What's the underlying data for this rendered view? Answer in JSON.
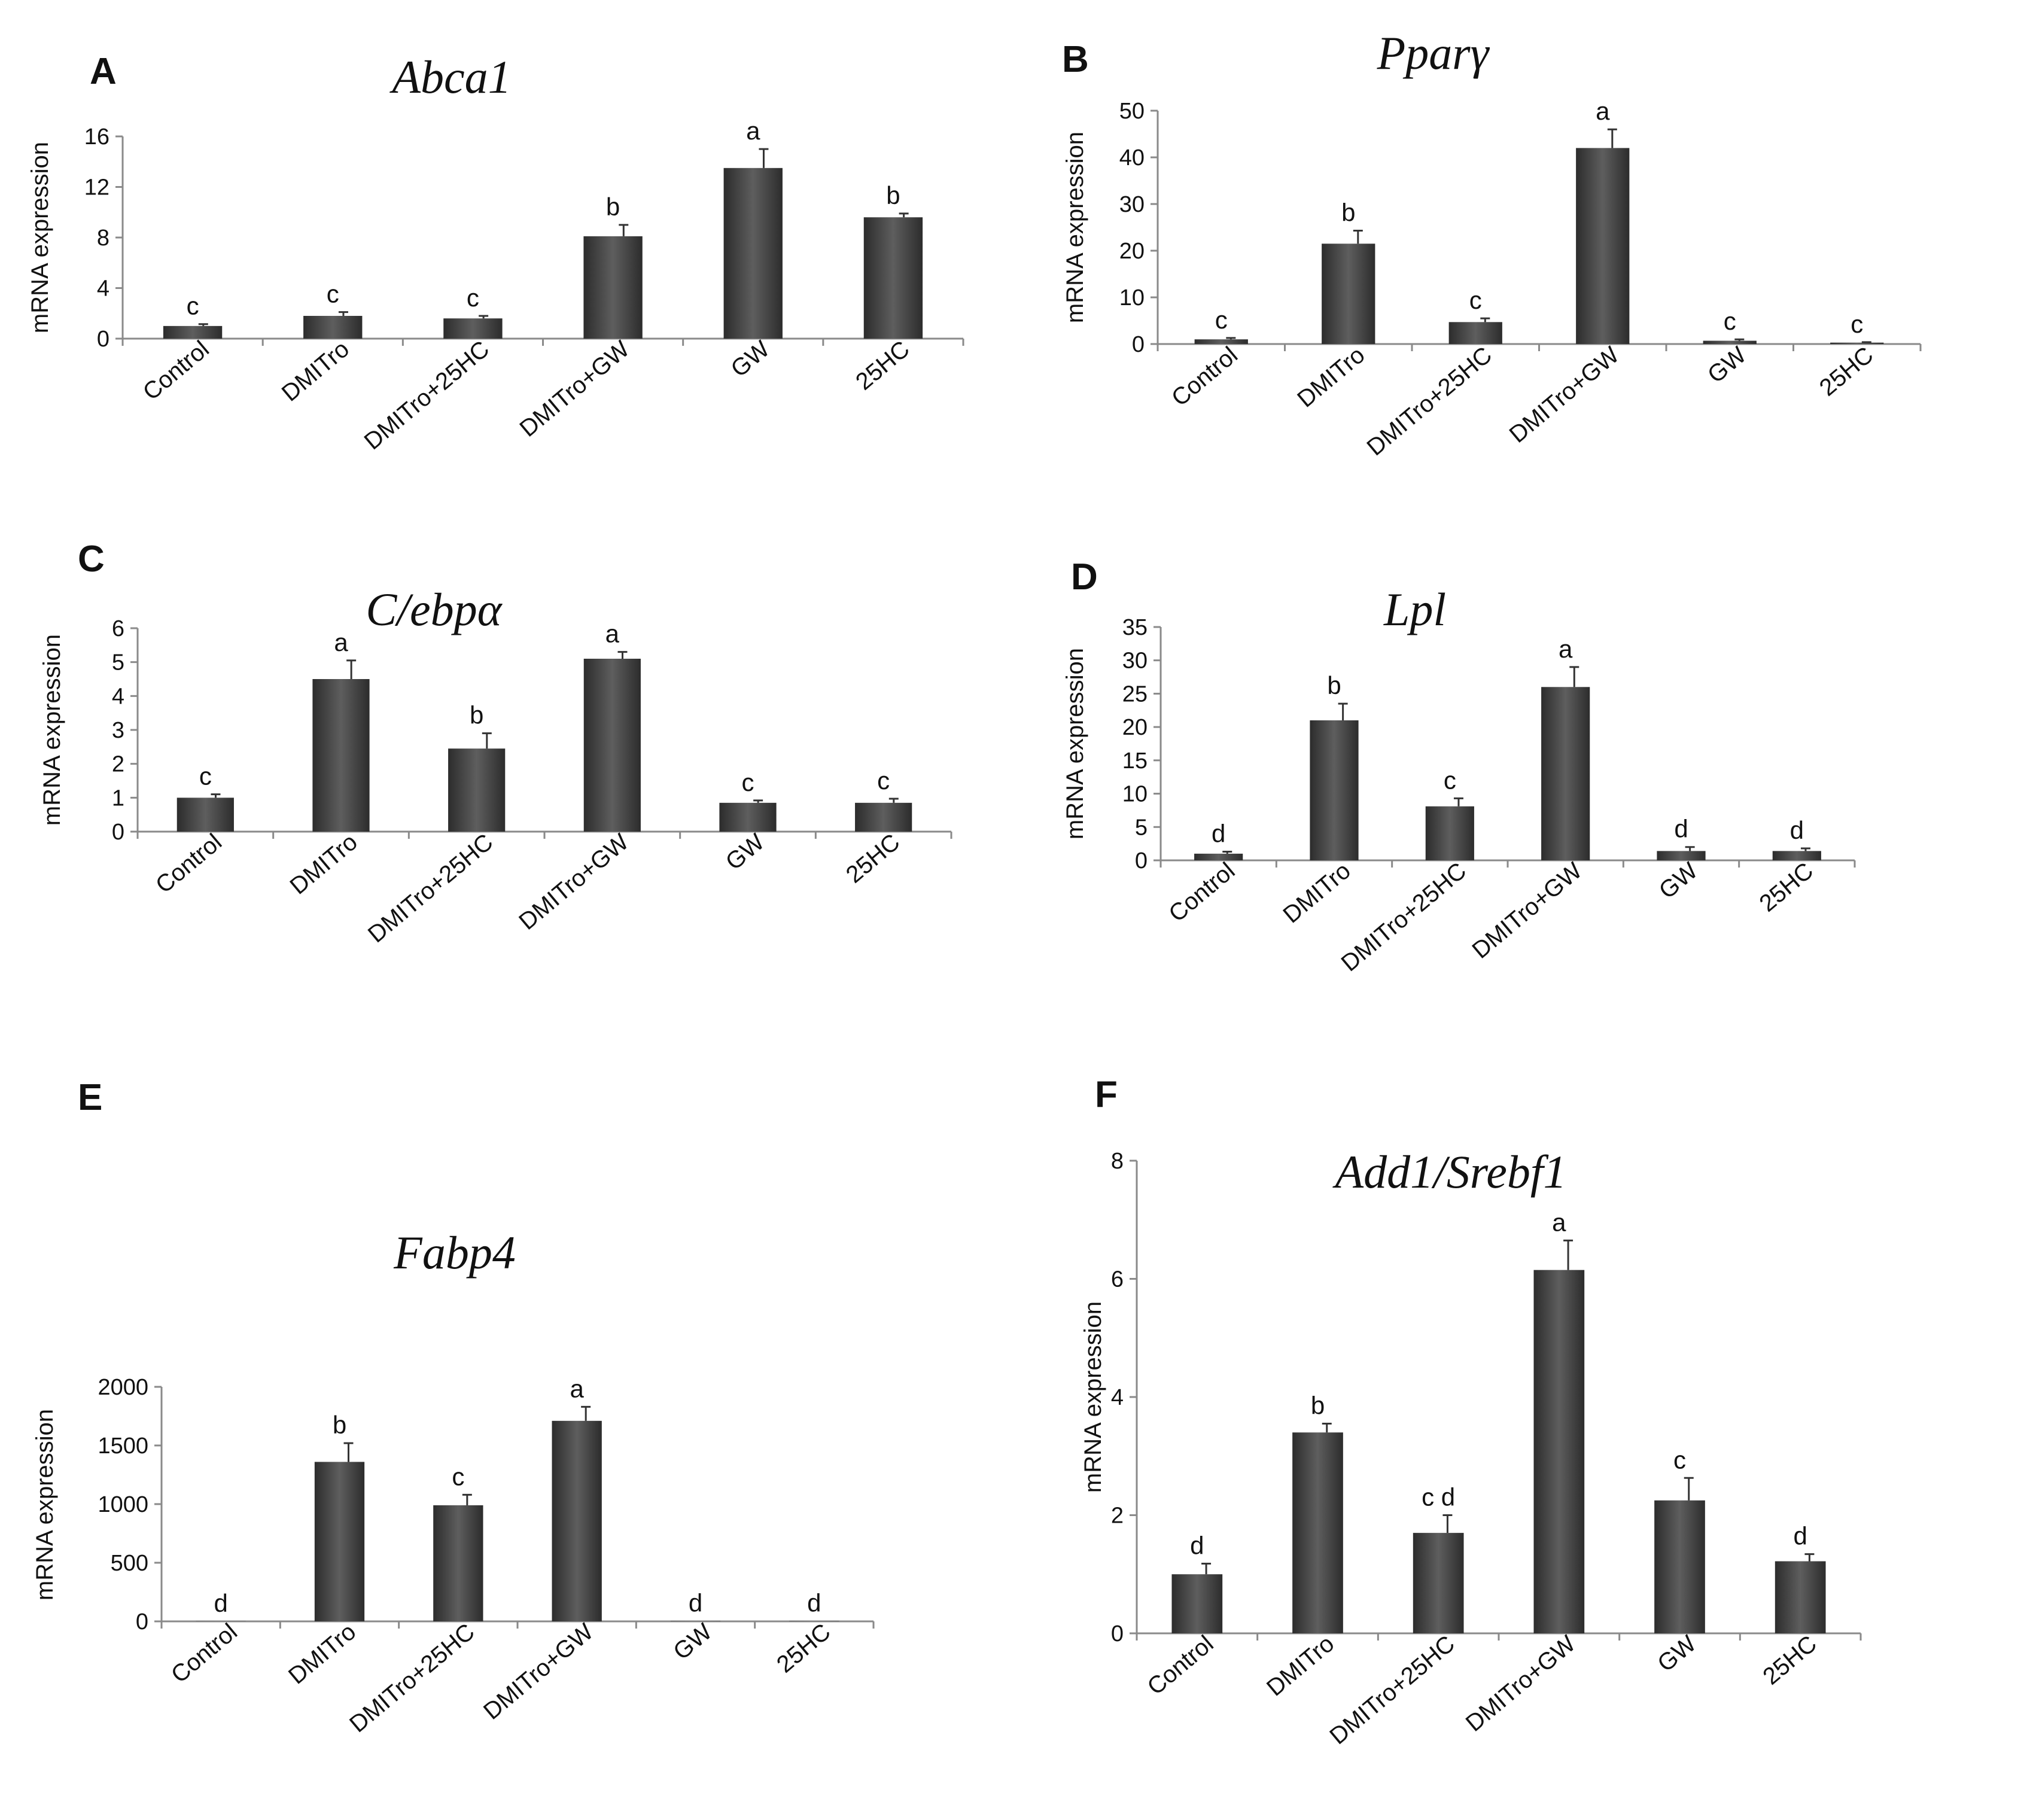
{
  "figure_title": "mRNA expression panels A–F",
  "colors": {
    "bar_dark": "#3a3a3a",
    "bar_light": "#6a6a6a",
    "axis": "#8a8a8a",
    "text": "#111111"
  },
  "chart_data": [
    {
      "panel": "A",
      "type": "bar",
      "title": "Abca1",
      "xlabel": "",
      "ylabel": "mRNA expression",
      "categories": [
        "Control",
        "DMITro",
        "DMITro+25HC",
        "DMITro+GW",
        "GW",
        "25HC"
      ],
      "values": [
        1.0,
        1.8,
        1.6,
        8.1,
        13.5,
        9.6
      ],
      "errors": [
        0.15,
        0.3,
        0.2,
        0.9,
        1.5,
        0.3
      ],
      "significance": [
        "c",
        "c",
        "c",
        "b",
        "a",
        "b"
      ],
      "ylim": [
        0,
        16
      ],
      "yticks": [
        0,
        4,
        8,
        12,
        16
      ]
    },
    {
      "panel": "B",
      "type": "bar",
      "title": "Pparγ",
      "xlabel": "",
      "ylabel": "mRNA expression",
      "categories": [
        "Control",
        "DMITro",
        "DMITro+25HC",
        "DMITro+GW",
        "GW",
        "25HC"
      ],
      "values": [
        1.0,
        21.5,
        4.7,
        42.0,
        0.7,
        0.3
      ],
      "errors": [
        0.3,
        2.8,
        0.8,
        4.0,
        0.3,
        0.1
      ],
      "significance": [
        "c",
        "b",
        "c",
        "a",
        "c",
        "c"
      ],
      "ylim": [
        0,
        50
      ],
      "yticks": [
        0,
        10,
        20,
        30,
        40,
        50
      ]
    },
    {
      "panel": "C",
      "type": "bar",
      "title": "C/ebpα",
      "xlabel": "",
      "ylabel": "mRNA expression",
      "categories": [
        "Control",
        "DMITro",
        "DMITro+25HC",
        "DMITro+GW",
        "GW",
        "25HC"
      ],
      "values": [
        1.0,
        4.5,
        2.45,
        5.1,
        0.85,
        0.85
      ],
      "errors": [
        0.1,
        0.55,
        0.45,
        0.2,
        0.07,
        0.12
      ],
      "significance": [
        "c",
        "a",
        "b",
        "a",
        "c",
        "c"
      ],
      "ylim": [
        0,
        6
      ],
      "yticks": [
        0,
        1,
        2,
        3,
        4,
        5,
        6
      ]
    },
    {
      "panel": "D",
      "type": "bar",
      "title": "Lpl",
      "xlabel": "",
      "ylabel": "mRNA expression",
      "categories": [
        "Control",
        "DMITro",
        "DMITro+25HC",
        "DMITro+GW",
        "GW",
        "25HC"
      ],
      "values": [
        1.0,
        21.0,
        8.1,
        26.0,
        1.4,
        1.4
      ],
      "errors": [
        0.3,
        2.5,
        1.2,
        3.0,
        0.6,
        0.4
      ],
      "significance": [
        "d",
        "b",
        "c",
        "a",
        "d",
        "d"
      ],
      "ylim": [
        0,
        35
      ],
      "yticks": [
        0,
        5,
        10,
        15,
        20,
        25,
        30,
        35
      ]
    },
    {
      "panel": "E",
      "type": "bar",
      "title": "Fabp4",
      "xlabel": "",
      "ylabel": "mRNA expression",
      "categories": [
        "Control",
        "DMITro",
        "DMITro+25HC",
        "DMITro+GW",
        "GW",
        "25HC"
      ],
      "values": [
        1,
        1360,
        990,
        1710,
        2,
        2
      ],
      "errors": [
        0,
        160,
        90,
        120,
        0,
        0
      ],
      "significance": [
        "d",
        "b",
        "c",
        "a",
        "d",
        "d"
      ],
      "ylim": [
        0,
        2000
      ],
      "yticks": [
        0,
        500,
        1000,
        1500,
        2000
      ]
    },
    {
      "panel": "F",
      "type": "bar",
      "title": "Add1/Srebf1",
      "xlabel": "",
      "ylabel": "mRNA expression",
      "categories": [
        "Control",
        "DMITro",
        "DMITro+25HC",
        "DMITro+GW",
        "GW",
        "25HC"
      ],
      "values": [
        1.0,
        3.4,
        1.7,
        6.15,
        2.25,
        1.22
      ],
      "errors": [
        0.18,
        0.15,
        0.3,
        0.5,
        0.38,
        0.12
      ],
      "significance": [
        "d",
        "b",
        "c d",
        "a",
        "c",
        "d"
      ],
      "ylim": [
        0,
        8
      ],
      "yticks": [
        0,
        2,
        4,
        6,
        8
      ]
    }
  ]
}
